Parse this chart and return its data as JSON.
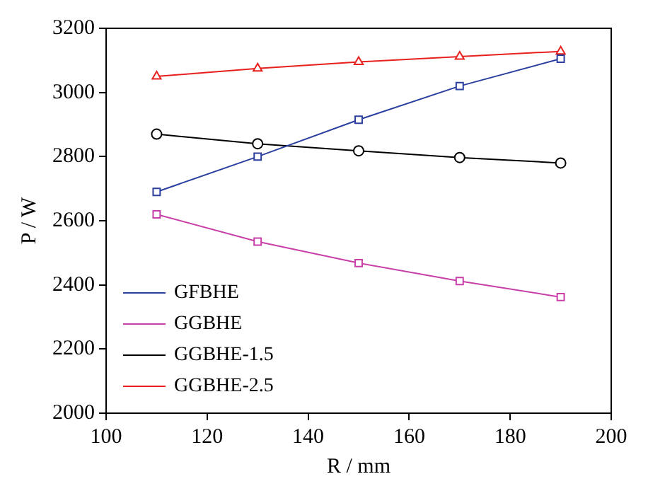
{
  "chart_data": {
    "type": "line",
    "xlabel": "R / mm",
    "ylabel": "P / W",
    "x": [
      110,
      130,
      150,
      170,
      190
    ],
    "series": [
      {
        "name": "GFBHE",
        "color": "#2b3f9e",
        "marker": "square",
        "values": [
          2690,
          2800,
          2915,
          3020,
          3105
        ]
      },
      {
        "name": "GGBHE",
        "color": "#c83fa8",
        "marker": "square",
        "values": [
          2620,
          2535,
          2468,
          2412,
          2362
        ]
      },
      {
        "name": "GGBHE-1.5",
        "color": "#000000",
        "marker": "circle",
        "values": [
          2870,
          2840,
          2818,
          2797,
          2780
        ]
      },
      {
        "name": "GGBHE-2.5",
        "color": "#e8201e",
        "marker": "triangle",
        "values": [
          3050,
          3075,
          3095,
          3112,
          3128
        ]
      }
    ],
    "xlim": [
      100,
      200
    ],
    "xticks": [
      100,
      120,
      140,
      160,
      180,
      200
    ],
    "ylim": [
      2000,
      3200
    ],
    "yticks": [
      2000,
      2200,
      2400,
      2600,
      2800,
      3000,
      3200
    ],
    "grid": false,
    "legend": "bottom left",
    "line_style": "solid"
  }
}
